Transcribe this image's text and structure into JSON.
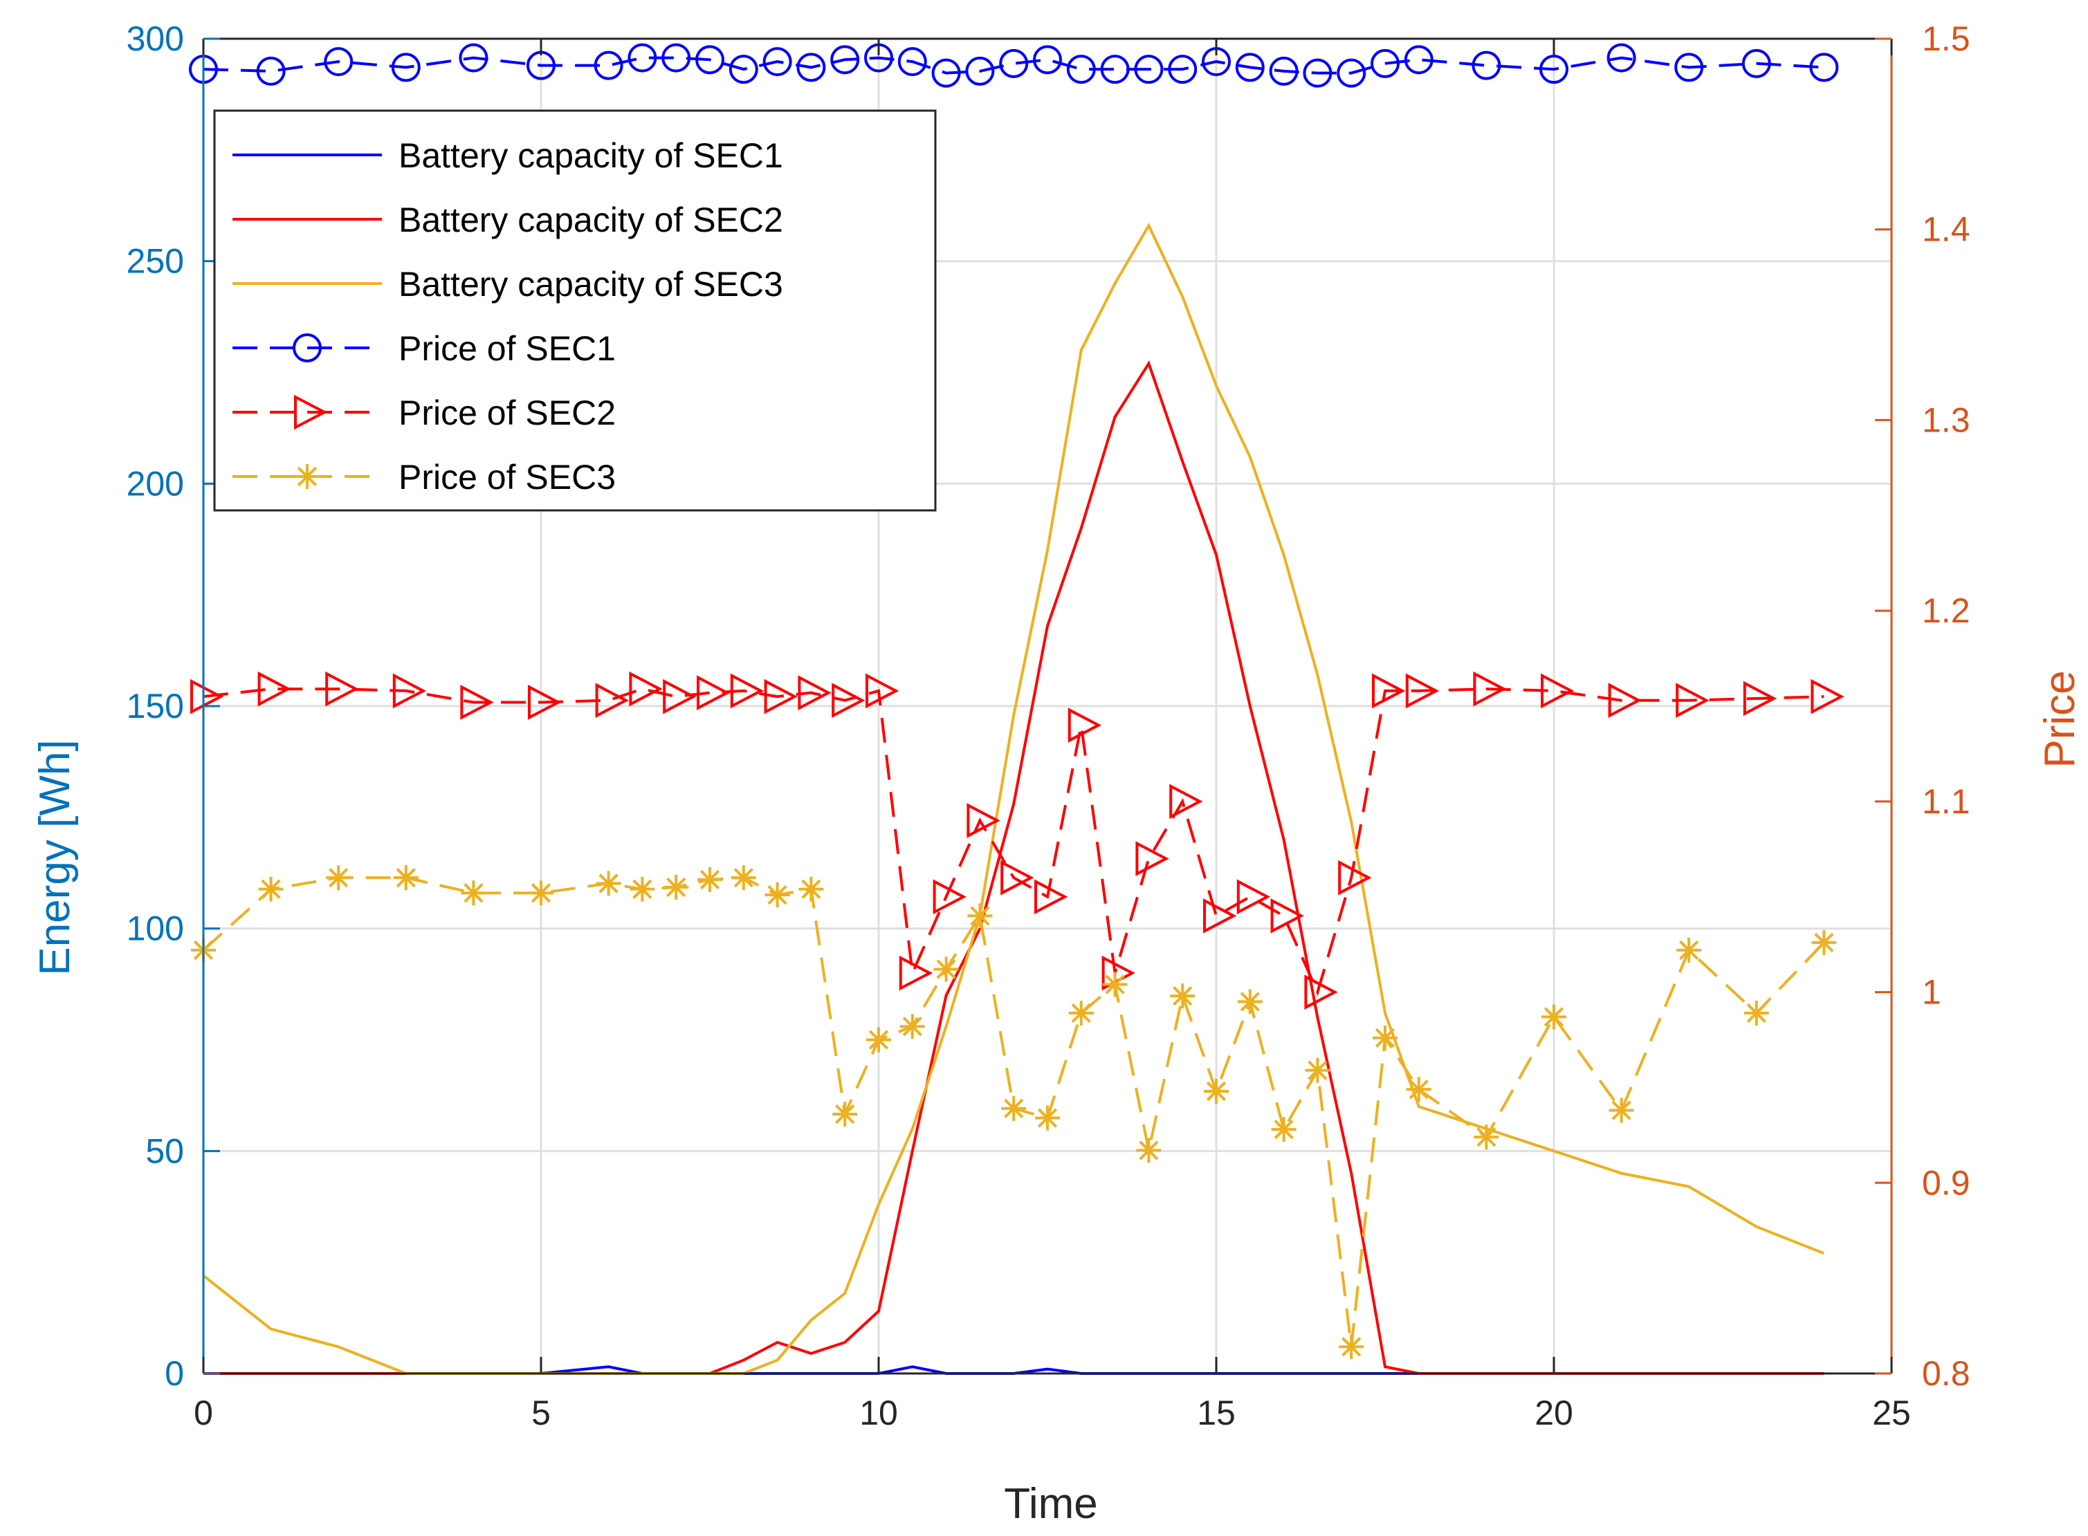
{
  "chart_data": {
    "type": "line",
    "title": "",
    "xlabel": "Time",
    "ylabel_left": "Energy [Wh]",
    "ylabel_right": "Price",
    "xlim": [
      0,
      25
    ],
    "ylim_left": [
      0,
      300
    ],
    "ylim_right": [
      0.8,
      1.5
    ],
    "grid": true,
    "legend_position": "top-left",
    "x_ticks": [
      0,
      5,
      10,
      15,
      20,
      25
    ],
    "x_tick_labels": [
      "0",
      "5",
      "10",
      "15",
      "20",
      "25"
    ],
    "left_ticks": [
      0,
      50,
      100,
      150,
      200,
      250,
      300
    ],
    "left_tick_labels": [
      "0",
      "50",
      "100",
      "150",
      "200",
      "250",
      "300"
    ],
    "right_ticks": [
      0.8,
      0.9,
      1.0,
      1.1,
      1.2,
      1.3,
      1.4,
      1.5
    ],
    "right_tick_labels": [
      "0.8",
      "0.9",
      "1",
      "1.1",
      "1.2",
      "1.3",
      "1.4",
      "1.5"
    ],
    "series": [
      {
        "name": "Battery capacity of SEC1",
        "axis": "left",
        "color": "#0000FF",
        "dash": "solid",
        "marker": "none",
        "x": [
          0,
          5,
          6,
          6.5,
          10,
          10.5,
          11,
          12,
          12.5,
          13,
          17.5,
          24
        ],
        "y": [
          0,
          0,
          1.5,
          0,
          0,
          1.5,
          0,
          0,
          1,
          0,
          0,
          0
        ]
      },
      {
        "name": "Battery capacity of SEC2",
        "axis": "left",
        "color": "#FF0000",
        "dash": "solid",
        "marker": "none",
        "x": [
          0,
          7.5,
          8,
          8.5,
          9,
          9.5,
          10,
          10.5,
          11,
          11.5,
          12,
          12.5,
          13,
          13.5,
          14,
          14.5,
          15,
          15.5,
          16,
          16.5,
          17,
          17.5,
          18,
          24
        ],
        "y": [
          0,
          0,
          3,
          7,
          4.5,
          7,
          14,
          50,
          85,
          100,
          128,
          168,
          190,
          215,
          227,
          205,
          184,
          150,
          120,
          80,
          45,
          1.5,
          0,
          0
        ]
      },
      {
        "name": "Battery capacity of SEC3",
        "axis": "left",
        "color": "#EDB120",
        "dash": "solid",
        "marker": "none",
        "x": [
          0,
          1,
          2,
          3,
          4,
          5,
          6,
          7,
          8,
          8.5,
          9,
          9.5,
          10,
          10.5,
          11,
          11.5,
          12,
          12.5,
          13,
          13.5,
          14,
          14.5,
          15,
          15.5,
          16,
          16.5,
          17,
          17.5,
          18,
          19,
          20,
          21,
          22,
          23,
          24
        ],
        "y": [
          22,
          10,
          6,
          0,
          0,
          0,
          0,
          0,
          0,
          3,
          12,
          18,
          38,
          55,
          78,
          103,
          148,
          185,
          230,
          245,
          258,
          242,
          222,
          206,
          184,
          157,
          124,
          81,
          60,
          55,
          50,
          45,
          42,
          33,
          27
        ]
      },
      {
        "name": "Price of SEC1",
        "axis": "right",
        "color": "#0000FF",
        "dash": "dashed",
        "marker": "circle",
        "x": [
          0,
          1,
          2,
          3,
          4,
          5,
          6,
          6.5,
          7,
          7.5,
          8,
          8.5,
          9,
          9.5,
          10,
          10.5,
          11,
          11.5,
          12,
          12.5,
          13,
          13.5,
          14,
          14.5,
          15,
          15.5,
          16,
          16.5,
          17,
          17.5,
          18,
          19,
          20,
          21,
          22,
          23,
          24
        ],
        "y": [
          1.484,
          1.483,
          1.488,
          1.485,
          1.49,
          1.486,
          1.486,
          1.49,
          1.49,
          1.489,
          1.484,
          1.488,
          1.485,
          1.489,
          1.49,
          1.488,
          1.482,
          1.483,
          1.487,
          1.489,
          1.484,
          1.484,
          1.484,
          1.484,
          1.488,
          1.485,
          1.483,
          1.482,
          1.482,
          1.487,
          1.489,
          1.486,
          1.484,
          1.49,
          1.485,
          1.487,
          1.485
        ]
      },
      {
        "name": "Price of SEC2",
        "axis": "right",
        "color": "#FF0000",
        "dash": "dashed",
        "marker": "triangle-right",
        "x": [
          0,
          1,
          2,
          3,
          4,
          5,
          6,
          6.5,
          7,
          7.5,
          8,
          8.5,
          9,
          9.5,
          10,
          10.5,
          11,
          11.5,
          12,
          12.5,
          13,
          13.5,
          14,
          14.5,
          15,
          15.5,
          16,
          16.5,
          17,
          17.5,
          18,
          19,
          20,
          21,
          22,
          23,
          24
        ],
        "y": [
          1.155,
          1.159,
          1.159,
          1.158,
          1.152,
          1.152,
          1.153,
          1.159,
          1.155,
          1.157,
          1.158,
          1.155,
          1.157,
          1.153,
          1.158,
          1.01,
          1.05,
          1.09,
          1.06,
          1.05,
          1.14,
          1.01,
          1.07,
          1.1,
          1.04,
          1.05,
          1.04,
          1.0,
          1.06,
          1.158,
          1.158,
          1.159,
          1.158,
          1.153,
          1.153,
          1.154,
          1.155
        ]
      },
      {
        "name": "Price of SEC3",
        "axis": "right",
        "color": "#EDB120",
        "dash": "dashed",
        "marker": "asterisk",
        "x": [
          0,
          1,
          2,
          3,
          4,
          5,
          6,
          6.5,
          7,
          7.5,
          8,
          8.5,
          9,
          9.5,
          10,
          10.5,
          11,
          11.5,
          12,
          12.5,
          13,
          13.5,
          14,
          14.5,
          15,
          15.5,
          16,
          16.5,
          17,
          17.5,
          18,
          19,
          20,
          21,
          22,
          23,
          24
        ],
        "y": [
          1.022,
          1.054,
          1.06,
          1.06,
          1.052,
          1.052,
          1.057,
          1.054,
          1.055,
          1.059,
          1.06,
          1.051,
          1.054,
          0.936,
          0.975,
          0.982,
          1.012,
          1.04,
          0.939,
          0.934,
          0.989,
          1.004,
          0.917,
          0.998,
          0.948,
          0.995,
          0.928,
          0.959,
          0.814,
          0.976,
          0.949,
          0.924,
          0.987,
          0.938,
          1.022,
          0.989,
          1.026
        ]
      }
    ]
  }
}
